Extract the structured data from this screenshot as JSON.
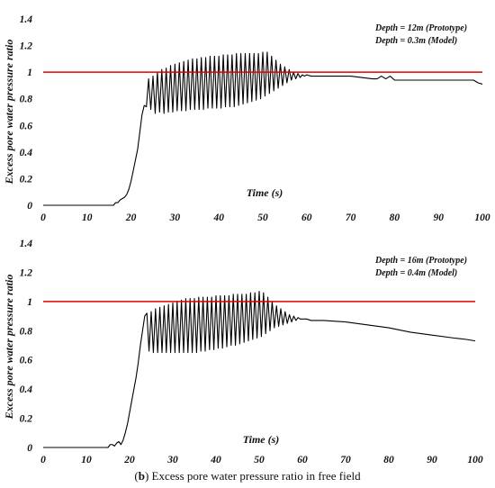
{
  "caption": {
    "label": "b",
    "open": "(",
    "close": ")",
    "text": " Excess pore water pressure ratio in free field"
  },
  "chart_data": [
    {
      "type": "line",
      "xlabel": "Time (s)",
      "ylabel": "Excess pore water pressure ratio",
      "xlim": [
        0,
        100
      ],
      "ylim": [
        0,
        1.4
      ],
      "xticks": [
        0,
        10,
        20,
        30,
        40,
        50,
        60,
        70,
        80,
        90,
        100
      ],
      "yticks": [
        0,
        0.2,
        0.4,
        0.6,
        0.8,
        1,
        1.2,
        1.4
      ],
      "xtick_labels": [
        "0",
        "10",
        "20",
        "30",
        "40",
        "50",
        "60",
        "70",
        "80",
        "90",
        "100"
      ],
      "ytick_labels": [
        "0",
        "0.2",
        "0.4",
        "0.6",
        "0.8",
        "1",
        "1.2",
        "1.4"
      ],
      "annotations": [
        "Depth = 12m (Prototype)",
        "Depth = 0.3m (Model)"
      ],
      "reference_line": {
        "y": 1,
        "color": "#e00000"
      },
      "series_color": "#000000",
      "series": [
        {
          "x": [
            0,
            16,
            16.5,
            17,
            17.5,
            18,
            18.5,
            19,
            19.5,
            20,
            20.5,
            21,
            21.5,
            22,
            22.5,
            23,
            23.5,
            24,
            24.5,
            25,
            25.5,
            26,
            26.5,
            27,
            27.5,
            28,
            28.5,
            29,
            29.5,
            30,
            30.5,
            31,
            31.5,
            32,
            32.5,
            33,
            33.5,
            34,
            34.5,
            35,
            35.5,
            36,
            36.5,
            37,
            37.5,
            38,
            38.5,
            39,
            39.5,
            40,
            40.5,
            41,
            41.5,
            42,
            42.5,
            43,
            43.5,
            44,
            44.5,
            45,
            45.5,
            46,
            46.5,
            47,
            47.5,
            48,
            48.5,
            49,
            49.5,
            50,
            50.5,
            51,
            51.5,
            52,
            52.5,
            53,
            53.5,
            54,
            54.5,
            55,
            55.5,
            56,
            56.5,
            57,
            57.5,
            58,
            58.5,
            59,
            59.5,
            60,
            61,
            70,
            75,
            76,
            77,
            78,
            79,
            80,
            90,
            98,
            99,
            100
          ],
          "y": [
            0,
            0,
            0.02,
            0.02,
            0.04,
            0.05,
            0.06,
            0.08,
            0.12,
            0.18,
            0.26,
            0.34,
            0.42,
            0.55,
            0.68,
            0.75,
            0.74,
            0.95,
            0.72,
            0.97,
            0.69,
            1.0,
            0.7,
            1.02,
            0.69,
            1.03,
            0.7,
            1.05,
            0.7,
            1.06,
            0.71,
            1.07,
            0.71,
            1.08,
            0.71,
            1.09,
            0.72,
            1.1,
            0.72,
            1.1,
            0.72,
            1.11,
            0.72,
            1.11,
            0.73,
            1.12,
            0.73,
            1.12,
            0.73,
            1.12,
            0.73,
            1.13,
            0.74,
            1.13,
            0.74,
            1.13,
            0.74,
            1.14,
            0.75,
            1.14,
            0.76,
            1.14,
            0.77,
            1.14,
            0.78,
            1.14,
            0.79,
            1.14,
            0.8,
            1.15,
            0.82,
            1.15,
            0.84,
            1.12,
            0.86,
            1.09,
            0.88,
            1.06,
            0.9,
            1.04,
            0.92,
            1.02,
            0.94,
            1.0,
            0.95,
            0.99,
            0.96,
            0.98,
            0.97,
            0.98,
            0.97,
            0.97,
            0.95,
            0.95,
            0.97,
            0.95,
            0.97,
            0.94,
            0.94,
            0.94,
            0.92,
            0.91
          ]
        }
      ]
    },
    {
      "type": "line",
      "xlabel": "Time (s)",
      "ylabel": "Excess pore water pressure ratio",
      "xlim": [
        0,
        100
      ],
      "ylim": [
        0,
        1.4
      ],
      "xticks": [
        0,
        10,
        20,
        30,
        40,
        50,
        60,
        70,
        80,
        90,
        100
      ],
      "yticks": [
        0,
        0.2,
        0.4,
        0.6,
        0.8,
        1,
        1.2,
        1.4
      ],
      "xtick_labels": [
        "0",
        "10",
        "20",
        "30",
        "40",
        "50",
        "60",
        "70",
        "80",
        "90",
        "100"
      ],
      "ytick_labels": [
        "0",
        "0.2",
        "0.4",
        "0.6",
        "0.8",
        "1",
        "1.2",
        "1.4"
      ],
      "annotations": [
        "Depth = 16m (Prototype)",
        "Depth = 0.4m (Model)"
      ],
      "reference_line": {
        "y": 1,
        "color": "#e00000"
      },
      "series_color": "#000000",
      "series": [
        {
          "x": [
            0,
            15,
            15.5,
            16,
            16.5,
            17,
            17.5,
            18,
            18.5,
            19,
            19.5,
            20,
            20.5,
            21,
            21.5,
            22,
            22.5,
            23,
            23.5,
            24,
            24.5,
            25,
            25.5,
            26,
            26.5,
            27,
            27.5,
            28,
            28.5,
            29,
            29.5,
            30,
            30.5,
            31,
            31.5,
            32,
            32.5,
            33,
            33.5,
            34,
            34.5,
            35,
            35.5,
            36,
            36.5,
            37,
            37.5,
            38,
            38.5,
            39,
            39.5,
            40,
            40.5,
            41,
            41.5,
            42,
            42.5,
            43,
            43.5,
            44,
            44.5,
            45,
            45.5,
            46,
            46.5,
            47,
            47.5,
            48,
            48.5,
            49,
            49.5,
            50,
            50.5,
            51,
            51.5,
            52,
            52.5,
            53,
            53.5,
            54,
            54.5,
            55,
            55.5,
            56,
            56.5,
            57,
            57.5,
            58,
            58.5,
            59,
            59.5,
            60,
            61,
            62,
            65,
            70,
            75,
            80,
            85,
            90,
            95,
            98,
            100
          ],
          "y": [
            0,
            0,
            0.02,
            0.02,
            0.01,
            0.03,
            0.04,
            0.02,
            0.05,
            0.1,
            0.16,
            0.24,
            0.32,
            0.4,
            0.48,
            0.58,
            0.7,
            0.8,
            0.9,
            0.92,
            0.66,
            0.93,
            0.65,
            0.95,
            0.65,
            0.96,
            0.65,
            0.97,
            0.65,
            0.98,
            0.65,
            0.99,
            0.65,
            1.0,
            0.65,
            1.01,
            0.65,
            1.02,
            0.65,
            1.02,
            0.65,
            1.02,
            0.65,
            1.03,
            0.66,
            1.03,
            0.66,
            1.03,
            0.67,
            1.03,
            0.67,
            1.04,
            0.68,
            1.04,
            0.68,
            1.04,
            0.69,
            1.04,
            0.7,
            1.05,
            0.7,
            1.05,
            0.71,
            1.05,
            0.72,
            1.05,
            0.73,
            1.06,
            0.74,
            1.06,
            0.75,
            1.07,
            0.76,
            1.06,
            0.78,
            1.03,
            0.8,
            1.0,
            0.82,
            0.97,
            0.83,
            0.95,
            0.84,
            0.93,
            0.85,
            0.91,
            0.86,
            0.9,
            0.87,
            0.89,
            0.88,
            0.88,
            0.88,
            0.87,
            0.87,
            0.86,
            0.84,
            0.82,
            0.79,
            0.77,
            0.75,
            0.74,
            0.73
          ]
        }
      ]
    }
  ]
}
